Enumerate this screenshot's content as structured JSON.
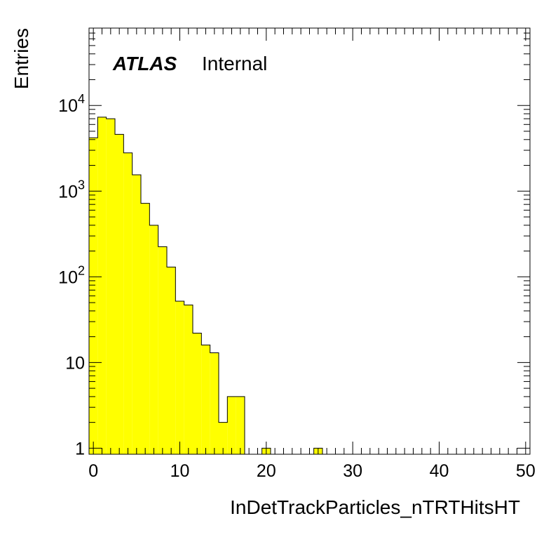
{
  "chart_data": {
    "type": "bar",
    "title": "",
    "xlabel": "InDetTrackParticles_nTRTHitsHT",
    "ylabel": "Entries",
    "log_y": true,
    "grid": false,
    "legend": "none",
    "bar_color": "#ffff00",
    "edge_color": "#000000",
    "xlim": [
      -0.5,
      50.5
    ],
    "ylim": [
      0.85,
      80000
    ],
    "bin_width": 1,
    "bins": [
      {
        "x": 0,
        "y": 4200
      },
      {
        "x": 1,
        "y": 7300
      },
      {
        "x": 2,
        "y": 7000
      },
      {
        "x": 3,
        "y": 4600
      },
      {
        "x": 4,
        "y": 2800
      },
      {
        "x": 5,
        "y": 1550
      },
      {
        "x": 6,
        "y": 720
      },
      {
        "x": 7,
        "y": 400
      },
      {
        "x": 8,
        "y": 225
      },
      {
        "x": 9,
        "y": 130
      },
      {
        "x": 10,
        "y": 52
      },
      {
        "x": 11,
        "y": 47
      },
      {
        "x": 12,
        "y": 22
      },
      {
        "x": 13,
        "y": 16
      },
      {
        "x": 14,
        "y": 13
      },
      {
        "x": 15,
        "y": 2
      },
      {
        "x": 16,
        "y": 4
      },
      {
        "x": 17,
        "y": 4
      },
      {
        "x": 20,
        "y": 1
      },
      {
        "x": 26,
        "y": 1
      }
    ],
    "x_ticks": [
      {
        "value": 0,
        "label": "0"
      },
      {
        "value": 10,
        "label": "10"
      },
      {
        "value": 20,
        "label": "20"
      },
      {
        "value": 30,
        "label": "30"
      },
      {
        "value": 40,
        "label": "40"
      },
      {
        "value": 50,
        "label": "50"
      }
    ],
    "y_ticks": [
      {
        "value": 1,
        "base": "1",
        "exp": ""
      },
      {
        "value": 10,
        "base": "10",
        "exp": ""
      },
      {
        "value": 100,
        "base": "10",
        "exp": "2"
      },
      {
        "value": 1000,
        "base": "10",
        "exp": "3"
      },
      {
        "value": 10000,
        "base": "10",
        "exp": "4"
      }
    ],
    "annotation": {
      "experiment": "ATLAS",
      "status": "Internal"
    }
  }
}
